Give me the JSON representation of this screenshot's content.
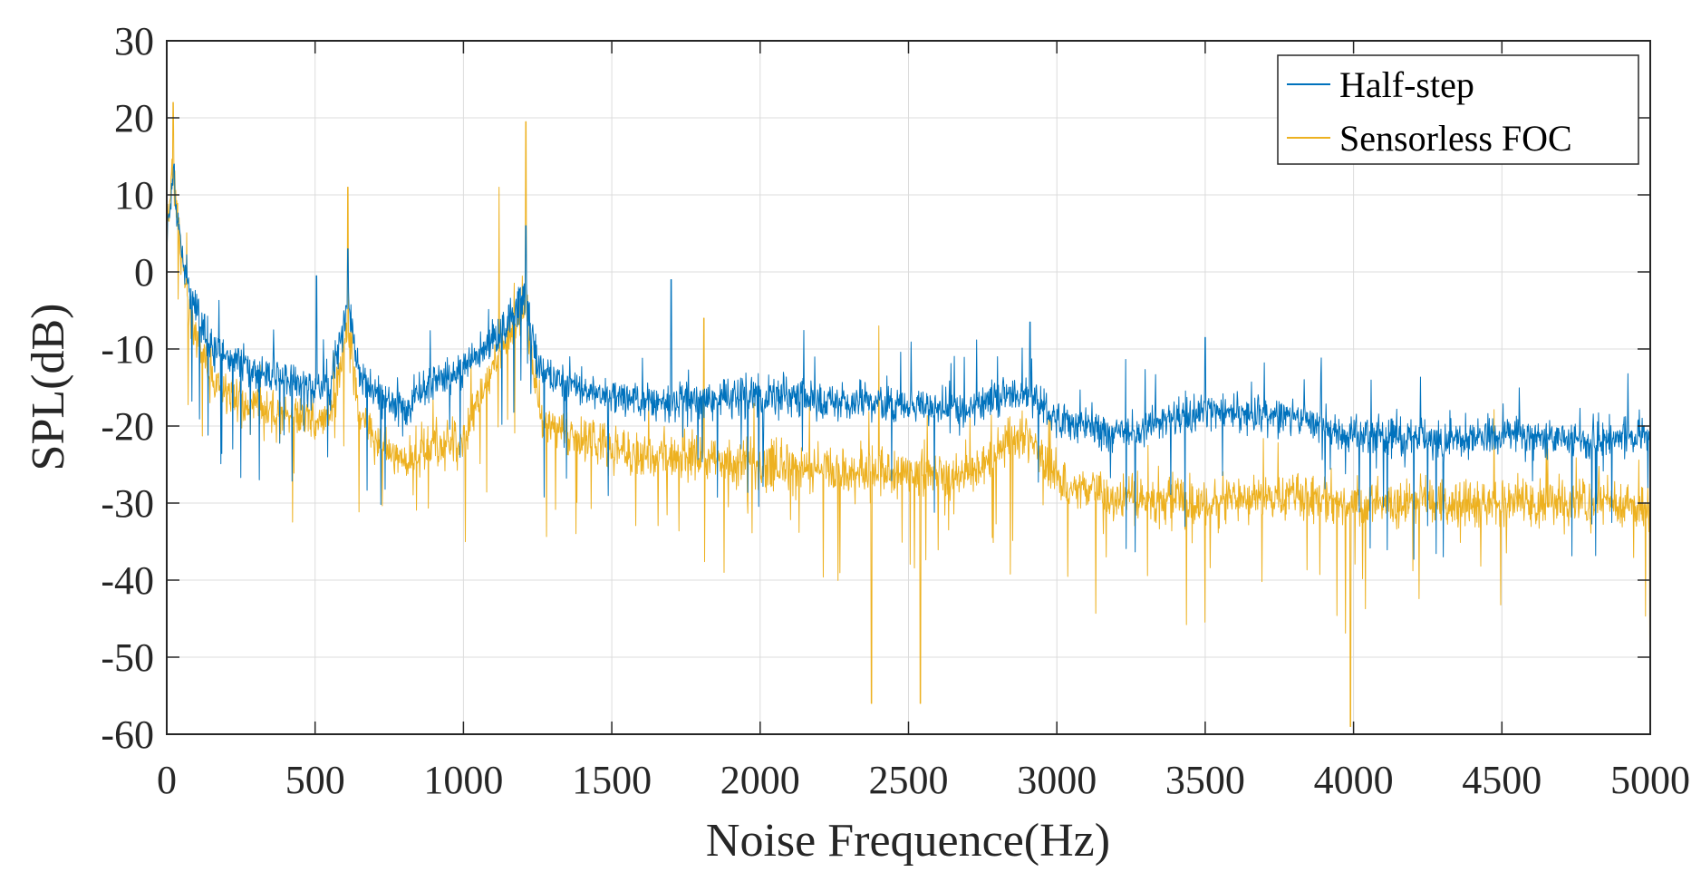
{
  "chart_data": {
    "type": "line",
    "title": "",
    "xlabel": "Noise Frequence(Hz)",
    "ylabel": "SPL(dB)",
    "xlim": [
      0,
      5000
    ],
    "ylim": [
      -60,
      30
    ],
    "xticks": [
      0,
      500,
      1000,
      1500,
      2000,
      2500,
      3000,
      3500,
      4000,
      4500,
      5000
    ],
    "yticks": [
      -60,
      -50,
      -40,
      -30,
      -20,
      -10,
      0,
      10,
      20,
      30
    ],
    "xtick_labels": [
      "0",
      "500",
      "1000",
      "1500",
      "2000",
      "2500",
      "3000",
      "3500",
      "4000",
      "4500",
      "5000"
    ],
    "ytick_labels": [
      "-60",
      "-50",
      "-40",
      "-30",
      "-20",
      "-10",
      "0",
      "10",
      "20",
      "30"
    ],
    "grid": true,
    "legend_position": "top-right",
    "series": [
      {
        "name": "Half-step",
        "color": "#0072BD",
        "envelope": {
          "x": [
            0,
            20,
            40,
            80,
            150,
            300,
            500,
            550,
            610,
            650,
            700,
            800,
            900,
            1000,
            1100,
            1150,
            1210,
            1250,
            1300,
            1500,
            1700,
            2000,
            2300,
            2500,
            2700,
            2800,
            2900,
            3000,
            3200,
            3500,
            3800,
            4000,
            4300,
            4500,
            4800,
            5000
          ],
          "mean": [
            4,
            12,
            5,
            -3,
            -10,
            -13,
            -15,
            -15,
            -4,
            -13,
            -16,
            -18,
            -14,
            -13,
            -9,
            -7,
            -3,
            -12,
            -14,
            -16,
            -17,
            -16,
            -17,
            -17,
            -18,
            -16,
            -16,
            -19,
            -21,
            -18,
            -19,
            -21,
            -22,
            -21,
            -22,
            -21
          ]
        },
        "peaks": [
          [
            25,
            14
          ],
          [
            505,
            -0.5
          ],
          [
            610,
            3
          ],
          [
            1210,
            6
          ],
          [
            1700,
            -1
          ],
          [
            2800,
            -11
          ],
          [
            2910,
            -6.5
          ],
          [
            3500,
            -8.5
          ]
        ]
      },
      {
        "name": "Sensorless FOC",
        "color": "#EDB120",
        "envelope": {
          "x": [
            0,
            20,
            40,
            80,
            150,
            300,
            500,
            550,
            610,
            650,
            700,
            800,
            900,
            1000,
            1100,
            1150,
            1210,
            1250,
            1300,
            1500,
            1700,
            2000,
            2300,
            2500,
            2700,
            2800,
            2900,
            3000,
            3200,
            3500,
            3800,
            4000,
            4300,
            4500,
            4800,
            5000
          ],
          "mean": [
            5,
            14,
            6,
            -6,
            -14,
            -18,
            -19,
            -19,
            -8,
            -18,
            -22,
            -25,
            -23,
            -22,
            -12,
            -9,
            -5,
            -17,
            -20,
            -23,
            -24,
            -25,
            -26,
            -26,
            -27,
            -23,
            -21,
            -27,
            -29,
            -30,
            -29,
            -30,
            -30,
            -30,
            -30,
            -31
          ]
        },
        "peaks": [
          [
            22,
            22
          ],
          [
            610,
            11
          ],
          [
            1120,
            11
          ],
          [
            1210,
            19.5
          ],
          [
            1810,
            -6
          ],
          [
            2400,
            -7
          ],
          [
            2375,
            -56
          ],
          [
            2540,
            -56
          ],
          [
            3990,
            -59
          ]
        ]
      }
    ]
  }
}
